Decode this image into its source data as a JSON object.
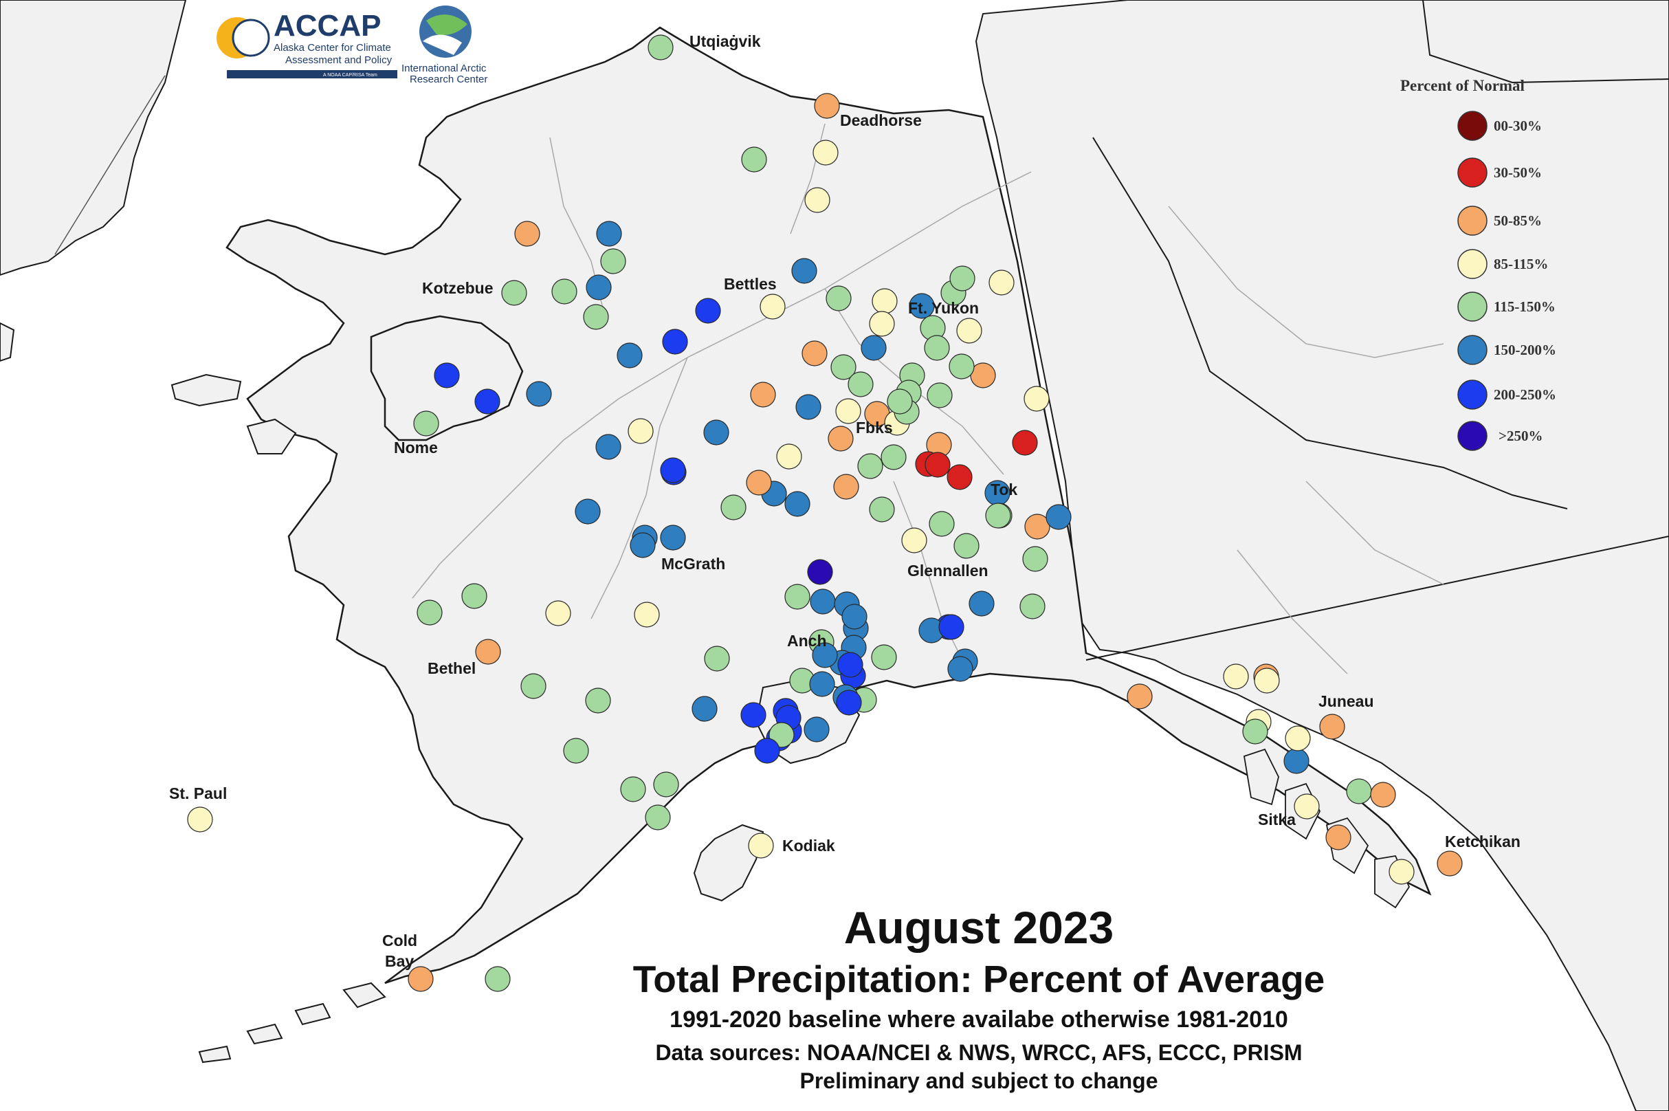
{
  "logos": {
    "accap_name": "ACCAP",
    "accap_line1": "Alaska Center for Climate",
    "accap_line2": "Assessment and Policy",
    "accap_tagline": "A NOAA CAP/RISA Team",
    "iarc_line1": "International Arctic",
    "iarc_line2": "Research Center"
  },
  "legend": {
    "title": "Percent of Normal",
    "items": [
      {
        "label": "00-30%",
        "color": "#7a0b0b"
      },
      {
        "label": "30-50%",
        "color": "#d8201f"
      },
      {
        "label": "50-85%",
        "color": "#f5a867"
      },
      {
        "label": "85-115%",
        "color": "#fbf6c2"
      },
      {
        "label": "115-150%",
        "color": "#a3d89f"
      },
      {
        "label": "150-200%",
        "color": "#2f7fc0"
      },
      {
        "label": "200-250%",
        "color": "#1c3cf0"
      },
      {
        "label": ">250%",
        "color": "#2a0ab2"
      }
    ]
  },
  "places": [
    {
      "name": "Utqiaġvik"
    },
    {
      "name": "Deadhorse"
    },
    {
      "name": "Kotzebue"
    },
    {
      "name": "Bettles"
    },
    {
      "name": "Ft. Yukon"
    },
    {
      "name": "Nome"
    },
    {
      "name": "Fbks"
    },
    {
      "name": "Tok"
    },
    {
      "name": "McGrath"
    },
    {
      "name": "Glennallen"
    },
    {
      "name": "Anch"
    },
    {
      "name": "Bethel"
    },
    {
      "name": "Juneau"
    },
    {
      "name": "St. Paul"
    },
    {
      "name": "Sitka"
    },
    {
      "name": "Kodiak"
    },
    {
      "name": "Ketchikan"
    },
    {
      "name": "Cold"
    },
    {
      "name": "Bay"
    }
  ],
  "title": {
    "line1": "August 2023",
    "line2": "Total Precipitation: Percent of Average",
    "line3": "1991-2020 baseline where availabe otherwise 1981-2010",
    "line4": "Data sources: NOAA/NCEI & NWS, WRCC, AFS, ECCC, PRISM",
    "line5": "Preliminary and subject to change"
  }
}
